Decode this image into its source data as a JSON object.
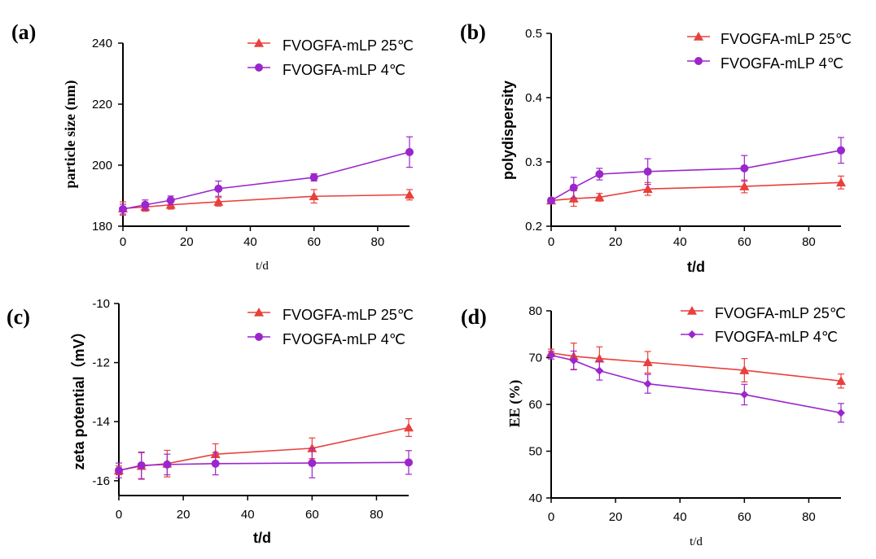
{
  "colors": {
    "series25": "#e8403c",
    "series4": "#9b26cc",
    "axis": "#000000"
  },
  "chart_data": [
    {
      "panel": "(a)",
      "type": "line",
      "title": "",
      "xlabel": "t/d",
      "ylabel": "particle size (nm)",
      "xlim": [
        0,
        90
      ],
      "ylim": [
        180,
        240
      ],
      "xticks": [
        0,
        20,
        40,
        60,
        80
      ],
      "yticks": [
        180,
        200,
        220,
        240
      ],
      "legend_position": "top-right",
      "x": [
        0,
        7,
        15,
        30,
        60,
        90
      ],
      "series": [
        {
          "name": "FVOGFA-mLP 25℃",
          "marker": "triangle",
          "values": [
            185.8,
            186.3,
            187.0,
            188.0,
            189.8,
            190.3
          ],
          "errors": [
            2.2,
            1.4,
            1.4,
            1.4,
            2.2,
            1.7
          ]
        },
        {
          "name": "FVOGFA-mLP 4℃",
          "marker": "circle",
          "values": [
            185.6,
            187.0,
            188.5,
            192.3,
            196.0,
            204.3
          ],
          "errors": [
            1.6,
            1.6,
            1.4,
            2.5,
            1.2,
            5.0
          ]
        }
      ]
    },
    {
      "panel": "(b)",
      "type": "line",
      "title": "",
      "xlabel": "t/d",
      "ylabel": "polydispersity",
      "xlim": [
        0,
        90
      ],
      "ylim": [
        0.2,
        0.5
      ],
      "xticks": [
        0,
        20,
        40,
        60,
        80
      ],
      "yticks": [
        0.2,
        0.3,
        0.4,
        0.5
      ],
      "legend_position": "top-right",
      "x": [
        0,
        7,
        15,
        30,
        60,
        90
      ],
      "series": [
        {
          "name": "FVOGFA-mLP 25℃",
          "marker": "triangle",
          "values": [
            0.24,
            0.243,
            0.245,
            0.258,
            0.262,
            0.268
          ],
          "errors": [
            0.004,
            0.012,
            0.006,
            0.01,
            0.01,
            0.01
          ]
        },
        {
          "name": "FVOGFA-mLP 4℃",
          "marker": "circle",
          "values": [
            0.24,
            0.26,
            0.281,
            0.285,
            0.29,
            0.318
          ],
          "errors": [
            0.004,
            0.016,
            0.009,
            0.02,
            0.02,
            0.02
          ]
        }
      ]
    },
    {
      "panel": "(c)",
      "type": "line",
      "title": "",
      "xlabel": "t/d",
      "ylabel": "zeta potential（mV）",
      "xlim": [
        0,
        90
      ],
      "ylim": [
        -16.5,
        -10
      ],
      "xticks": [
        0,
        20,
        40,
        60,
        80
      ],
      "yticks": [
        -16,
        -14,
        -12,
        -10
      ],
      "legend_position": "top-right",
      "x": [
        0,
        7,
        15,
        30,
        60,
        90
      ],
      "series": [
        {
          "name": "FVOGFA-mLP 25℃",
          "marker": "triangle",
          "values": [
            -15.65,
            -15.5,
            -15.42,
            -15.1,
            -14.9,
            -14.2
          ],
          "errors": [
            0.15,
            0.45,
            0.45,
            0.35,
            0.35,
            0.3
          ]
        },
        {
          "name": "FVOGFA-mLP 4℃",
          "marker": "circle",
          "values": [
            -15.65,
            -15.48,
            -15.45,
            -15.42,
            -15.4,
            -15.38
          ],
          "errors": [
            0.25,
            0.45,
            0.35,
            0.38,
            0.5,
            0.4
          ]
        }
      ]
    },
    {
      "panel": "(d)",
      "type": "line",
      "title": "",
      "xlabel": "t/d",
      "ylabel": "EE (%)",
      "xlim": [
        0,
        90
      ],
      "ylim": [
        40,
        80
      ],
      "xticks": [
        0,
        20,
        40,
        60,
        80
      ],
      "yticks": [
        40,
        50,
        60,
        70,
        80
      ],
      "legend_position": "top-right",
      "x": [
        0,
        7,
        15,
        30,
        60,
        90
      ],
      "series": [
        {
          "name": "FVOGFA-mLP 25℃",
          "marker": "triangle",
          "values": [
            71.0,
            70.3,
            69.8,
            69.0,
            67.3,
            65.0
          ],
          "errors": [
            0.8,
            2.8,
            2.5,
            2.3,
            2.5,
            1.5
          ]
        },
        {
          "name": "FVOGFA-mLP 4℃",
          "marker": "diamond",
          "values": [
            70.5,
            69.4,
            67.2,
            64.4,
            62.1,
            58.2
          ],
          "errors": [
            0.8,
            2.0,
            2.0,
            2.0,
            2.2,
            2.0
          ]
        }
      ]
    }
  ]
}
